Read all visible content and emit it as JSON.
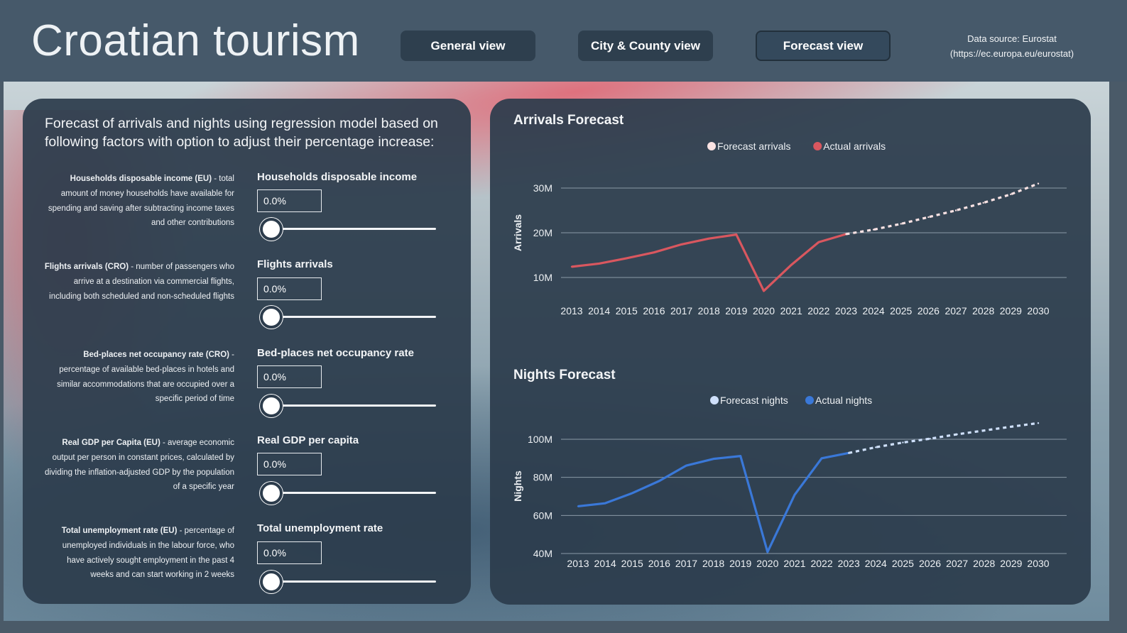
{
  "header": {
    "title": "Croatian tourism",
    "nav": [
      {
        "label": "General view",
        "active": false
      },
      {
        "label": "City & County view",
        "active": false
      },
      {
        "label": "Forecast view",
        "active": true
      }
    ],
    "source_line1": "Data source: Eurostat",
    "source_line2": "(https://ec.europa.eu/eurostat)"
  },
  "factors_panel": {
    "intro": "Forecast of arrivals and nights using regression model based on following factors with option to adjust their percentage increase:",
    "factors": [
      {
        "desc_bold": "Households disposable income (EU)",
        "desc_rest": " - total amount of money households have available for spending and saving after subtracting income taxes and other contributions",
        "title": "Households disposable income",
        "value": "0.0%",
        "slider_level": 0
      },
      {
        "desc_bold": "Flights arrivals (CRO)",
        "desc_rest": " - number of passengers who arrive at a destination via commercial flights, including both scheduled and non-scheduled flights",
        "title": "Flights arrivals",
        "value": "0.0%",
        "slider_level": 0
      },
      {
        "desc_bold": "Bed-places net occupancy rate (CRO)",
        "desc_rest": " - percentage of available bed-places in hotels and similar accommodations that are occupied over a specific period of time",
        "title": "Bed-places net occupancy rate",
        "value": "0.0%",
        "slider_level": 0
      },
      {
        "desc_bold": "Real GDP per Capita (EU)",
        "desc_rest": " - average economic output per person in constant prices, calculated by dividing the inflation-adjusted GDP by the population of a specific year",
        "title": "Real GDP per capita",
        "value": "0.0%",
        "slider_level": 0
      },
      {
        "desc_bold": "Total unemployment rate (EU)",
        "desc_rest": " - percentage of unemployed individuals in the labour force, who have actively sought employment in the past 4 weeks and can start working in 2 weeks",
        "title": "Total unemployment rate",
        "value": "0.0%",
        "slider_level": 0
      }
    ]
  },
  "colors": {
    "arrivals_actual": "#d9575f",
    "arrivals_forecast": "#fbe3e4",
    "nights_actual": "#3a78d8",
    "nights_forecast": "#cfe0fb",
    "gridline": "#8b9aa7"
  },
  "chart_data": [
    {
      "type": "line",
      "title": "Arrivals Forecast",
      "xlabel": "",
      "ylabel": "Arrivals",
      "x": [
        2013,
        2014,
        2015,
        2016,
        2017,
        2018,
        2019,
        2020,
        2021,
        2022,
        2023,
        2024,
        2025,
        2026,
        2027,
        2028,
        2029,
        2030
      ],
      "yticks": [
        "10M",
        "20M",
        "30M"
      ],
      "ytick_values": [
        10000000,
        20000000,
        30000000
      ],
      "ylim": [
        5000000,
        32000000
      ],
      "legend_position": "top-center",
      "grid": true,
      "series": [
        {
          "name": "Forecast arrivals",
          "style": "dotted",
          "x": [
            2023,
            2024,
            2025,
            2026,
            2027,
            2028,
            2029,
            2030
          ],
          "values": [
            19700000,
            20700000,
            22000000,
            23500000,
            25000000,
            26700000,
            28600000,
            31000000
          ]
        },
        {
          "name": "Actual arrivals",
          "style": "solid",
          "x": [
            2013,
            2014,
            2015,
            2016,
            2017,
            2018,
            2019,
            2020,
            2021,
            2022,
            2023
          ],
          "values": [
            12400000,
            13100000,
            14300000,
            15600000,
            17400000,
            18700000,
            19600000,
            7000000,
            12800000,
            17900000,
            19700000
          ]
        }
      ]
    },
    {
      "type": "line",
      "title": "Nights Forecast",
      "xlabel": "",
      "ylabel": "Nights",
      "x": [
        2013,
        2014,
        2015,
        2016,
        2017,
        2018,
        2019,
        2020,
        2021,
        2022,
        2023,
        2024,
        2025,
        2026,
        2027,
        2028,
        2029,
        2030
      ],
      "yticks": [
        "40M",
        "60M",
        "80M",
        "100M"
      ],
      "ytick_values": [
        40000000,
        60000000,
        80000000,
        100000000
      ],
      "ylim": [
        40000000,
        100000000
      ],
      "legend_position": "top-center",
      "grid": true,
      "series": [
        {
          "name": "Forecast nights",
          "style": "dotted",
          "x": [
            2023,
            2024,
            2025,
            2026,
            2027,
            2028,
            2029,
            2030
          ],
          "values": [
            92800000,
            95800000,
            98300000,
            100300000,
            102600000,
            104600000,
            106600000,
            108500000
          ]
        },
        {
          "name": "Actual nights",
          "style": "solid",
          "x": [
            2013,
            2014,
            2015,
            2016,
            2017,
            2018,
            2019,
            2020,
            2021,
            2022,
            2023
          ],
          "values": [
            64800000,
            66400000,
            71700000,
            78100000,
            86200000,
            89700000,
            91200000,
            40800000,
            70800000,
            90000000,
            92800000
          ]
        }
      ]
    }
  ]
}
